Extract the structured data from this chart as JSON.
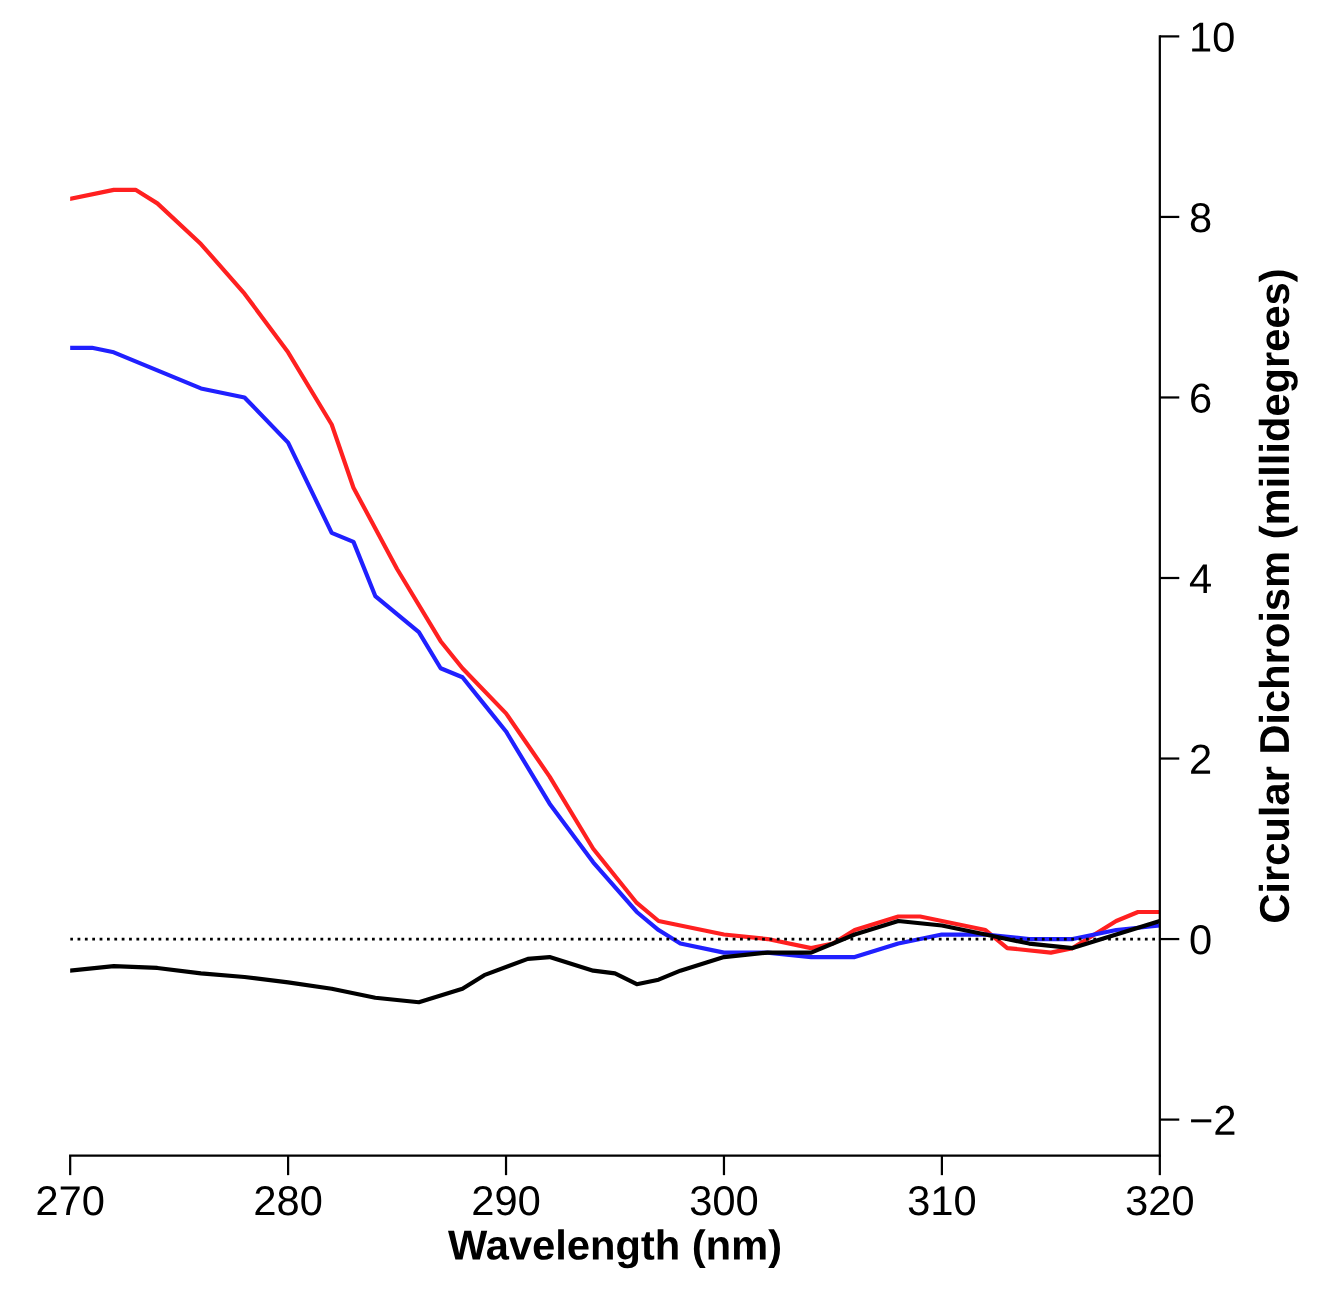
{
  "chart_data": {
    "type": "line",
    "xlabel": "Wavelength (nm)",
    "y2label": "Circular Dichroism (millidegrees)",
    "xlim": [
      270,
      320
    ],
    "xticks": [
      270,
      280,
      290,
      300,
      310,
      320
    ],
    "y2lim": [
      -2.4,
      10
    ],
    "y2ticks": [
      {
        "value": -2,
        "label": "−2"
      },
      0,
      2,
      4,
      6,
      8,
      10
    ],
    "grid": false,
    "legend": false,
    "marker": "none",
    "line_style": "solid",
    "ref_lines": [
      {
        "axis": "y2",
        "value": 0,
        "label": null,
        "color": "#000000",
        "line_style": "dotted"
      }
    ],
    "series": [
      {
        "color": "#ff2020",
        "axis": "y2",
        "x": [
          270,
          272,
          273,
          274,
          276,
          278,
          280,
          282,
          283,
          285,
          287,
          288,
          290,
          292,
          294,
          296,
          297,
          300,
          302,
          304,
          305,
          306,
          308,
          309,
          310,
          311,
          312,
          313,
          315,
          316,
          318,
          319,
          320
        ],
        "values": [
          8.2,
          8.3,
          8.3,
          8.15,
          7.7,
          7.15,
          6.5,
          5.7,
          5.0,
          4.1,
          3.3,
          3.0,
          2.5,
          1.8,
          1.0,
          0.4,
          0.2,
          0.05,
          0.0,
          -0.1,
          -0.05,
          0.1,
          0.25,
          0.25,
          0.2,
          0.15,
          0.1,
          -0.1,
          -0.15,
          -0.1,
          0.2,
          0.3,
          0.3
        ]
      },
      {
        "color": "#2020ff",
        "axis": "y2",
        "x": [
          270,
          271,
          272,
          274,
          276,
          278,
          280,
          282,
          283,
          284,
          286,
          287,
          288,
          289,
          290,
          292,
          294,
          296,
          297,
          298,
          300,
          302,
          304,
          306,
          308,
          310,
          312,
          314,
          316,
          318,
          320
        ],
        "values": [
          6.55,
          6.55,
          6.5,
          6.3,
          6.1,
          6.0,
          5.5,
          4.5,
          4.4,
          3.8,
          3.4,
          3.0,
          2.9,
          2.6,
          2.3,
          1.5,
          0.85,
          0.3,
          0.1,
          -0.05,
          -0.15,
          -0.15,
          -0.2,
          -0.2,
          -0.05,
          0.05,
          0.05,
          0.0,
          0.0,
          0.1,
          0.15
        ]
      },
      {
        "color": "#000000",
        "axis": "y2",
        "x": [
          270,
          272,
          274,
          276,
          278,
          280,
          282,
          284,
          286,
          288,
          289,
          291,
          292,
          294,
          295,
          296,
          297,
          298,
          300,
          302,
          304,
          306,
          308,
          310,
          312,
          314,
          316,
          318,
          320
        ],
        "values": [
          -0.35,
          -0.3,
          -0.32,
          -0.38,
          -0.42,
          -0.48,
          -0.55,
          -0.65,
          -0.7,
          -0.55,
          -0.4,
          -0.22,
          -0.2,
          -0.35,
          -0.38,
          -0.5,
          -0.45,
          -0.35,
          -0.2,
          -0.15,
          -0.15,
          0.05,
          0.2,
          0.15,
          0.05,
          -0.05,
          -0.1,
          0.05,
          0.2
        ]
      }
    ]
  }
}
